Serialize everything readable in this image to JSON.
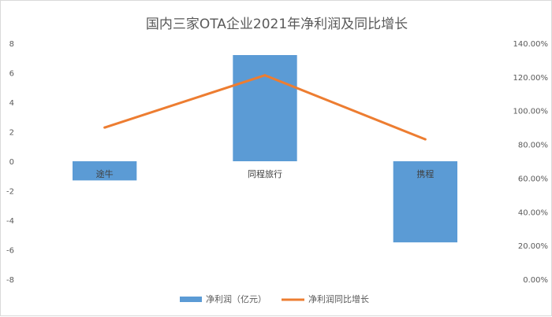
{
  "chart_data": {
    "type": "bar",
    "title": "国内三家OTA企业2021年净利润及同比增长",
    "categories": [
      "途牛",
      "同程旅行",
      "携程"
    ],
    "series": [
      {
        "name": "净利润（亿元）",
        "type": "bar",
        "axis": "left",
        "color": "#5b9bd5",
        "values": [
          -1.3,
          7.2,
          -5.5
        ]
      },
      {
        "name": "净利润同比增长",
        "type": "line",
        "axis": "right",
        "color": "#ed7d31",
        "values": [
          90.0,
          121.0,
          83.0
        ]
      }
    ],
    "left_axis": {
      "ylim": [
        -8,
        8
      ],
      "ticks": [
        "8",
        "6",
        "4",
        "2",
        "0",
        "-2",
        "-4",
        "-6",
        "-8"
      ]
    },
    "right_axis": {
      "ylim": [
        0,
        140
      ],
      "ticks": [
        "140.00%",
        "120.00%",
        "100.00%",
        "80.00%",
        "60.00%",
        "40.00%",
        "20.00%",
        "0.00%"
      ]
    },
    "grid": false,
    "legend_position": "bottom"
  }
}
